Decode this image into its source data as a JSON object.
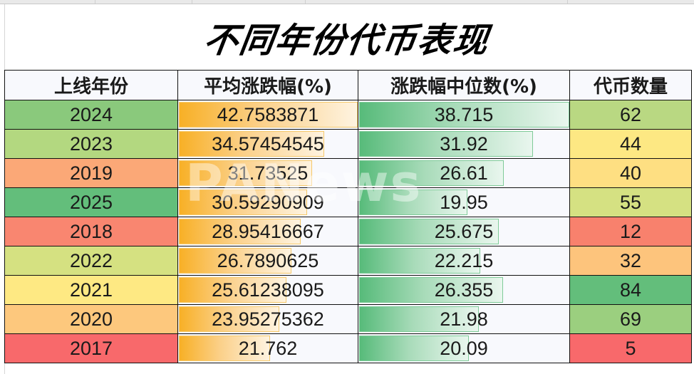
{
  "title": "不同年份代币表现",
  "watermark": "PANews",
  "table": {
    "headers": [
      "上线年份",
      "平均涨跌幅(%)",
      "涨跌幅中位数(%)",
      "代币数量"
    ],
    "rows": [
      {
        "year": "2024",
        "avg": "42.7583871",
        "median": "38.715",
        "count": "62",
        "year_color": "#8ac97c",
        "count_color": "#b9d882",
        "avg_pct": 99.5,
        "median_pct": 99.5
      },
      {
        "year": "2023",
        "avg": "34.57454545",
        "median": "31.92",
        "count": "44",
        "year_color": "#b3d880",
        "count_color": "#fde883",
        "avg_pct": 80.8,
        "median_pct": 82.4
      },
      {
        "year": "2019",
        "avg": "31.73525",
        "median": "26.61",
        "count": "40",
        "year_color": "#fba877",
        "count_color": "#fedf82",
        "avg_pct": 74.2,
        "median_pct": 68.7
      },
      {
        "year": "2025",
        "avg": "30.59290909",
        "median": "19.95",
        "count": "55",
        "year_color": "#63be7b",
        "count_color": "#d5e182",
        "avg_pct": 71.5,
        "median_pct": 51.5
      },
      {
        "year": "2018",
        "avg": "28.95416667",
        "median": "25.675",
        "count": "12",
        "year_color": "#f98670",
        "count_color": "#f8816d",
        "avg_pct": 67.7,
        "median_pct": 66.3
      },
      {
        "year": "2022",
        "avg": "26.7890625",
        "median": "22.215",
        "count": "32",
        "year_color": "#d5e181",
        "count_color": "#fdc47c",
        "avg_pct": 62.6,
        "median_pct": 57.4
      },
      {
        "year": "2021",
        "avg": "25.61238095",
        "median": "26.355",
        "count": "84",
        "year_color": "#fee983",
        "count_color": "#63be7b",
        "avg_pct": 59.9,
        "median_pct": 68.1
      },
      {
        "year": "2020",
        "avg": "23.95275362",
        "median": "21.98",
        "count": "69",
        "year_color": "#fdc87d",
        "count_color": "#9bcf7f",
        "avg_pct": 56.0,
        "median_pct": 56.8
      },
      {
        "year": "2017",
        "avg": "21.762",
        "median": "20.09",
        "count": "5",
        "year_color": "#f8696b",
        "count_color": "#f8696b",
        "avg_pct": 50.9,
        "median_pct": 51.9
      }
    ]
  },
  "chart_data": {
    "type": "table",
    "title": "不同年份代币表现",
    "columns": [
      "上线年份",
      "平均涨跌幅(%)",
      "涨跌幅中位数(%)",
      "代币数量"
    ],
    "categories": [
      "2024",
      "2023",
      "2019",
      "2025",
      "2018",
      "2022",
      "2021",
      "2020",
      "2017"
    ],
    "series": [
      {
        "name": "平均涨跌幅(%)",
        "values": [
          42.7583871,
          34.57454545,
          31.73525,
          30.59290909,
          28.95416667,
          26.7890625,
          25.61238095,
          23.95275362,
          21.762
        ]
      },
      {
        "name": "涨跌幅中位数(%)",
        "values": [
          38.715,
          31.92,
          26.61,
          19.95,
          25.675,
          22.215,
          26.355,
          21.98,
          20.09
        ]
      },
      {
        "name": "代币数量",
        "values": [
          62,
          44,
          40,
          55,
          12,
          32,
          84,
          69,
          5
        ]
      }
    ],
    "notes": "Sorted by average change descending; avg and median columns shown with data bars; year and count columns with color scales."
  }
}
